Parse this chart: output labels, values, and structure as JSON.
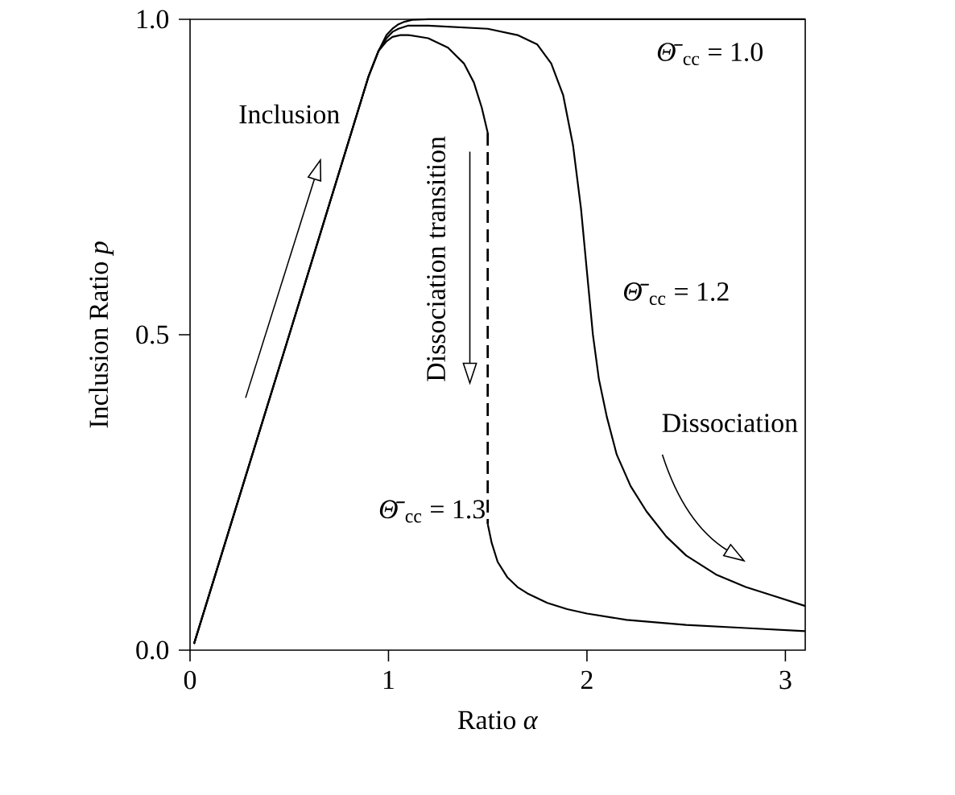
{
  "chart_data": {
    "type": "line",
    "xlabel": "Ratio *α*",
    "ylabel": "Inclusion Ratio *p*",
    "xlim": [
      0,
      3.1
    ],
    "ylim": [
      0,
      1.0
    ],
    "xticks": [
      0,
      1,
      2,
      3
    ],
    "yticks": [
      {
        "value": 0,
        "label": "0.0"
      },
      {
        "value": 0.5,
        "label": "0.5"
      },
      {
        "value": 1.0,
        "label": "1.0"
      }
    ],
    "marker": "none",
    "series": [
      {
        "color": "#000000",
        "line_style": "dashed",
        "x": [
          1.5,
          1.5
        ],
        "values": [
          0.82,
          0.2
        ]
      },
      {
        "name": "*Θ̄*$_{cc}$ = 1.0",
        "color": "#000000",
        "line_style": "solid",
        "x": [
          0.02,
          0.5,
          0.9,
          0.95,
          0.99,
          1.02,
          1.05,
          1.08,
          1.12,
          1.2,
          1.5,
          2.0,
          2.5,
          3.1
        ],
        "values": [
          0.01,
          0.5,
          0.91,
          0.95,
          0.975,
          0.985,
          0.992,
          0.996,
          0.999,
          1.0,
          1.0,
          1.0,
          1.0,
          1.0
        ]
      },
      {
        "name": "*Θ̄*$_{cc}$ = 1.2",
        "color": "#000000",
        "line_style": "solid",
        "x": [
          0.02,
          0.5,
          0.9,
          0.95,
          0.99,
          1.02,
          1.05,
          1.1,
          1.2,
          1.5,
          1.65,
          1.75,
          1.82,
          1.88,
          1.93,
          1.97,
          2.0,
          2.03,
          2.06,
          2.1,
          2.15,
          2.22,
          2.3,
          2.4,
          2.5,
          2.65,
          2.8,
          2.95,
          3.1
        ],
        "values": [
          0.01,
          0.5,
          0.91,
          0.95,
          0.97,
          0.98,
          0.985,
          0.99,
          0.99,
          0.985,
          0.975,
          0.96,
          0.93,
          0.88,
          0.8,
          0.7,
          0.6,
          0.5,
          0.43,
          0.37,
          0.31,
          0.26,
          0.22,
          0.18,
          0.15,
          0.12,
          0.1,
          0.085,
          0.07
        ]
      },
      {
        "name": "*Θ̄*$_{cc}$ = 1.3",
        "color": "#000000",
        "line_style": "solid",
        "x": [
          0.02,
          0.5,
          0.9,
          0.95,
          0.99,
          1.02,
          1.06,
          1.1,
          1.2,
          1.3,
          1.38,
          1.43,
          1.47,
          1.5,
          null,
          1.5,
          1.52,
          1.55,
          1.6,
          1.65,
          1.7,
          1.8,
          1.9,
          2.0,
          2.2,
          2.5,
          2.8,
          3.1
        ],
        "values": [
          0.01,
          0.5,
          0.91,
          0.95,
          0.965,
          0.972,
          0.975,
          0.975,
          0.97,
          0.955,
          0.93,
          0.9,
          0.86,
          0.82,
          null,
          0.2,
          0.17,
          0.14,
          0.115,
          0.1,
          0.09,
          0.075,
          0.065,
          0.058,
          0.048,
          0.04,
          0.035,
          0.03
        ]
      }
    ],
    "annotations": [
      "Inclusion",
      "Dissociation transition",
      "Dissociation"
    ]
  }
}
